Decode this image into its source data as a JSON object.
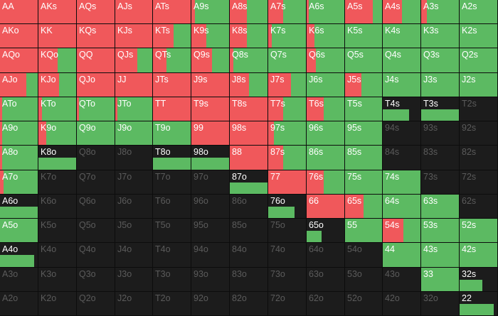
{
  "colors": {
    "raise": "#f0585b",
    "call": "#5cba62",
    "fold": "#1c1c1c",
    "label": "#ffffff",
    "label_empty": "#5b5b5b"
  },
  "grid": {
    "rows": [
      [
        [
          "AA",
          1,
          0
        ],
        [
          "AKs",
          1,
          0
        ],
        [
          "AQs",
          1,
          0
        ],
        [
          "AJs",
          1,
          0
        ],
        [
          "ATs",
          1,
          0
        ],
        [
          "A9s",
          0.1,
          0.9
        ],
        [
          "A8s",
          0.45,
          0.55
        ],
        [
          "A7s",
          0.4,
          0.6
        ],
        [
          "A6s",
          0.05,
          0.95
        ],
        [
          "A5s",
          0.75,
          0.25
        ],
        [
          "A4s",
          0.5,
          0.5
        ],
        [
          "A3s",
          0.15,
          0.85
        ],
        [
          "A2s",
          0,
          1
        ]
      ],
      [
        [
          "AKo",
          1,
          0
        ],
        [
          "KK",
          1,
          0
        ],
        [
          "KQs",
          1,
          0
        ],
        [
          "KJs",
          1,
          0
        ],
        [
          "KTs",
          0.55,
          0.45
        ],
        [
          "K9s",
          0.4,
          0.6
        ],
        [
          "K8s",
          0.45,
          0.55
        ],
        [
          "K7s",
          0.1,
          0.9
        ],
        [
          "K6s",
          0.2,
          0.8
        ],
        [
          "K5s",
          0,
          1
        ],
        [
          "K4s",
          0,
          1
        ],
        [
          "K3s",
          0,
          1
        ],
        [
          "K2s",
          0,
          1
        ]
      ],
      [
        [
          "AQo",
          1,
          0
        ],
        [
          "KQo",
          0.5,
          0.5
        ],
        [
          "QQ",
          1,
          0
        ],
        [
          "QJs",
          0.6,
          0.4
        ],
        [
          "QTs",
          0.35,
          0.65
        ],
        [
          "Q9s",
          0.55,
          0.45
        ],
        [
          "Q8s",
          0.1,
          0.9
        ],
        [
          "Q7s",
          0,
          1
        ],
        [
          "Q6s",
          0.25,
          0.75
        ],
        [
          "Q5s",
          0,
          1
        ],
        [
          "Q4s",
          0,
          1
        ],
        [
          "Q3s",
          0,
          1
        ],
        [
          "Q2s",
          0,
          1
        ]
      ],
      [
        [
          "AJo",
          0.7,
          0.3
        ],
        [
          "KJo",
          0.55,
          0.45
        ],
        [
          "QJo",
          1,
          0
        ],
        [
          "JJ",
          1,
          0
        ],
        [
          "JTs",
          1,
          0
        ],
        [
          "J9s",
          1,
          0
        ],
        [
          "J8s",
          0.5,
          0.5
        ],
        [
          "J7s",
          0.6,
          0.4
        ],
        [
          "J6s",
          0,
          1
        ],
        [
          "J5s",
          0.45,
          0.55
        ],
        [
          "J4s",
          0,
          1
        ],
        [
          "J3s",
          0,
          1
        ],
        [
          "J2s",
          0,
          1
        ]
      ],
      [
        [
          "ATo",
          0.05,
          0.95
        ],
        [
          "KTo",
          0.1,
          0.9
        ],
        [
          "QTo",
          0.05,
          0.95
        ],
        [
          "JTo",
          0.05,
          0.95
        ],
        [
          "TT",
          1,
          0
        ],
        [
          "T9s",
          1,
          0
        ],
        [
          "T8s",
          1,
          0
        ],
        [
          "T7s",
          0.4,
          0.6
        ],
        [
          "T6s",
          0.45,
          0.55
        ],
        [
          "T5s",
          0,
          1
        ],
        [
          "T4s",
          0,
          0.35
        ],
        [
          "T3s",
          0,
          0.7
        ],
        [
          "T2s",
          0,
          0
        ]
      ],
      [
        [
          "A9o",
          0.05,
          0.95
        ],
        [
          "K9o",
          0.2,
          0.8
        ],
        [
          "Q9o",
          0,
          1
        ],
        [
          "J9o",
          0,
          1
        ],
        [
          "T9o",
          0,
          1
        ],
        [
          "99",
          1,
          0
        ],
        [
          "98s",
          1,
          0
        ],
        [
          "97s",
          0.15,
          0.85
        ],
        [
          "96s",
          0,
          1
        ],
        [
          "95s",
          0,
          1
        ],
        [
          "94s",
          0,
          0
        ],
        [
          "93s",
          0,
          0
        ],
        [
          "92s",
          0,
          0
        ]
      ],
      [
        [
          "A8o",
          0.05,
          0.95
        ],
        [
          "K8o",
          0,
          0.75
        ],
        [
          "Q8o",
          0,
          0
        ],
        [
          "J8o",
          0,
          0
        ],
        [
          "T8o",
          0,
          0.6
        ],
        [
          "98o",
          0,
          0.6
        ],
        [
          "88",
          1,
          0
        ],
        [
          "87s",
          0.4,
          0.6
        ],
        [
          "86s",
          0,
          1
        ],
        [
          "85s",
          0,
          1
        ],
        [
          "84s",
          0,
          0
        ],
        [
          "83s",
          0,
          0
        ],
        [
          "82s",
          0,
          0
        ]
      ],
      [
        [
          "A7o",
          0.1,
          0.9
        ],
        [
          "K7o",
          0,
          0
        ],
        [
          "Q7o",
          0,
          0
        ],
        [
          "J7o",
          0,
          0
        ],
        [
          "T7o",
          0,
          0
        ],
        [
          "97o",
          0,
          0
        ],
        [
          "87o",
          0,
          0.55
        ],
        [
          "77",
          1,
          0
        ],
        [
          "76s",
          0.45,
          0.55
        ],
        [
          "75s",
          0,
          1
        ],
        [
          "74s",
          0,
          1
        ],
        [
          "73s",
          0,
          0
        ],
        [
          "72s",
          0,
          0
        ]
      ],
      [
        [
          "A6o",
          0,
          0.5
        ],
        [
          "K6o",
          0,
          0
        ],
        [
          "Q6o",
          0,
          0
        ],
        [
          "J6o",
          0,
          0
        ],
        [
          "T6o",
          0,
          0
        ],
        [
          "96o",
          0,
          0
        ],
        [
          "86o",
          0,
          0
        ],
        [
          "76o",
          0,
          0.35
        ],
        [
          "66",
          1,
          0
        ],
        [
          "65s",
          0.5,
          0.5
        ],
        [
          "64s",
          0,
          1
        ],
        [
          "63s",
          0,
          1
        ],
        [
          "62s",
          0,
          0
        ]
      ],
      [
        [
          "A5o",
          0,
          1
        ],
        [
          "K5o",
          0,
          0
        ],
        [
          "Q5o",
          0,
          0
        ],
        [
          "J5o",
          0,
          0
        ],
        [
          "T5o",
          0,
          0
        ],
        [
          "95o",
          0,
          0
        ],
        [
          "85o",
          0,
          0
        ],
        [
          "75o",
          0,
          0
        ],
        [
          "65o",
          0,
          0.2
        ],
        [
          "55",
          0,
          1
        ],
        [
          "54s",
          0.55,
          0.45
        ],
        [
          "53s",
          0,
          1
        ],
        [
          "52s",
          0,
          1
        ]
      ],
      [
        [
          "A4o",
          0,
          0.45
        ],
        [
          "K4o",
          0,
          0
        ],
        [
          "Q4o",
          0,
          0
        ],
        [
          "J4o",
          0,
          0
        ],
        [
          "T4o",
          0,
          0
        ],
        [
          "94o",
          0,
          0
        ],
        [
          "84o",
          0,
          0
        ],
        [
          "74o",
          0,
          0
        ],
        [
          "64o",
          0,
          0
        ],
        [
          "54o",
          0,
          0
        ],
        [
          "44",
          0,
          1
        ],
        [
          "43s",
          0,
          1
        ],
        [
          "42s",
          0,
          1
        ]
      ],
      [
        [
          "A3o",
          0,
          0
        ],
        [
          "K3o",
          0,
          0
        ],
        [
          "Q3o",
          0,
          0
        ],
        [
          "J3o",
          0,
          0
        ],
        [
          "T3o",
          0,
          0
        ],
        [
          "93o",
          0,
          0
        ],
        [
          "83o",
          0,
          0
        ],
        [
          "73o",
          0,
          0
        ],
        [
          "63o",
          0,
          0
        ],
        [
          "53o",
          0,
          0
        ],
        [
          "43o",
          0,
          0
        ],
        [
          "33",
          0,
          1
        ],
        [
          "32s",
          0,
          0.3
        ]
      ],
      [
        [
          "A2o",
          0,
          0
        ],
        [
          "K2o",
          0,
          0
        ],
        [
          "Q2o",
          0,
          0
        ],
        [
          "J2o",
          0,
          0
        ],
        [
          "T2o",
          0,
          0
        ],
        [
          "92o",
          0,
          0
        ],
        [
          "82o",
          0,
          0
        ],
        [
          "72o",
          0,
          0
        ],
        [
          "62o",
          0,
          0
        ],
        [
          "52o",
          0,
          0
        ],
        [
          "42o",
          0,
          0
        ],
        [
          "32o",
          0,
          0
        ],
        [
          "22",
          0,
          0.45
        ]
      ]
    ]
  }
}
